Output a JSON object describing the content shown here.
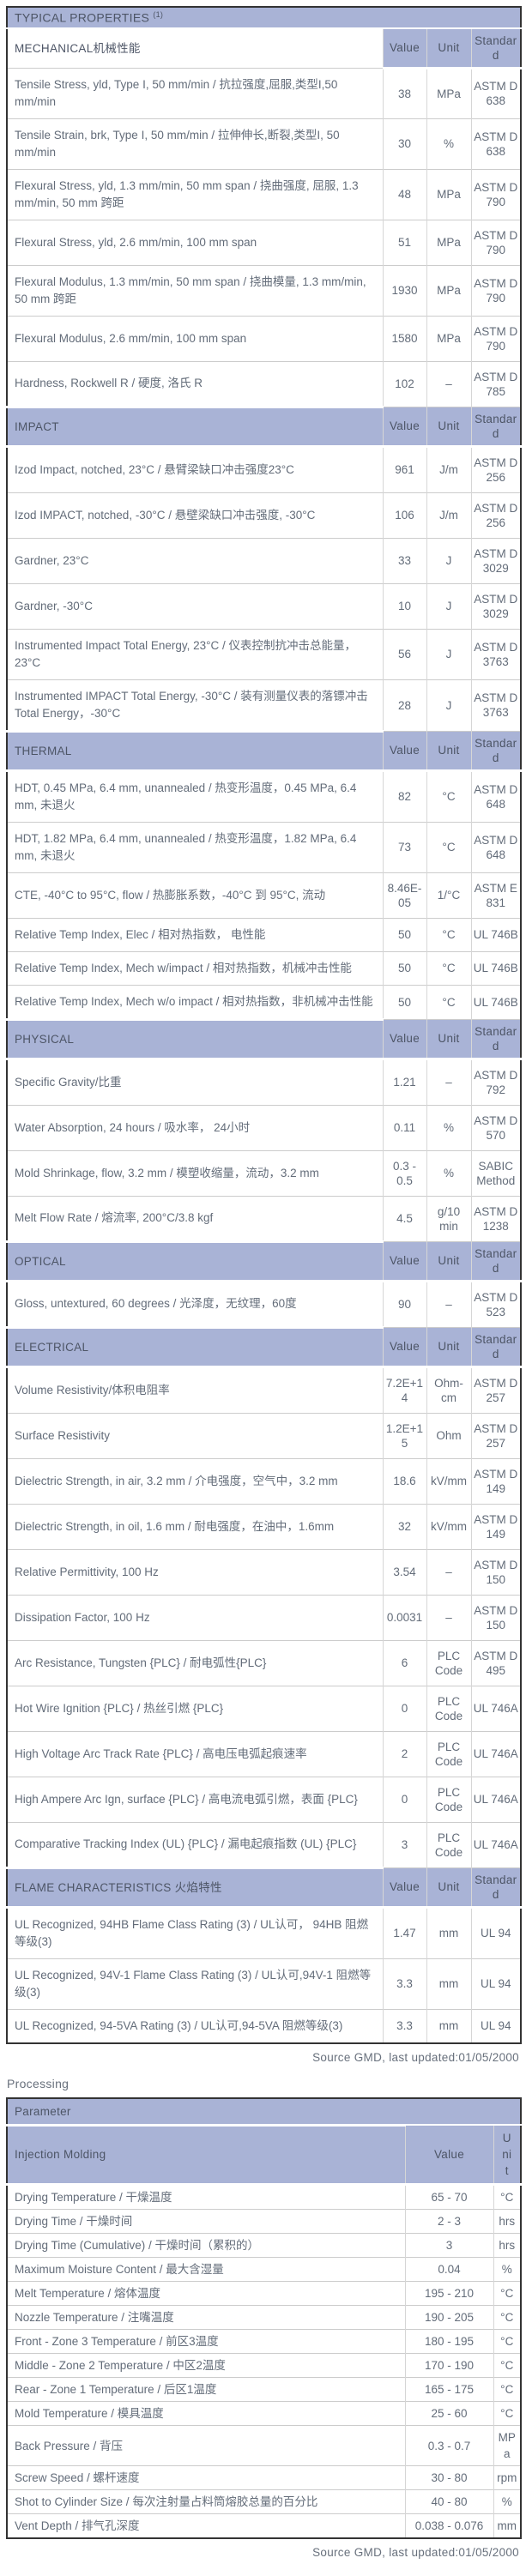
{
  "colors": {
    "header_bg": "#a9b3d6",
    "header_text": "#4d5566",
    "body_text": "#636c79",
    "outer_border": "#333333",
    "grid_line": "#cccccc"
  },
  "typical_properties": {
    "title": "TYPICAL PROPERTIES",
    "title_superscript": "(1)",
    "columns": [
      "Value",
      "Unit",
      "Standard"
    ],
    "sections": [
      {
        "name": "MECHANICAL机械性能",
        "rows": [
          {
            "property": "Tensile Stress, yld, Type I, 50 mm/min / 抗拉强度,屈服,类型I,50 mm/min",
            "value": "38",
            "unit": "MPa",
            "standard": "ASTM D 638"
          },
          {
            "property": "Tensile Strain, brk, Type I, 50 mm/min / 拉伸伸长,断裂,类型I, 50 mm/min",
            "value": "30",
            "unit": "%",
            "standard": "ASTM D 638"
          },
          {
            "property": "Flexural Stress, yld, 1.3 mm/min, 50 mm span / 挠曲强度, 屈服, 1.3 mm/min, 50 mm 跨距",
            "value": "48",
            "unit": "MPa",
            "standard": "ASTM D 790"
          },
          {
            "property": "Flexural Stress, yld, 2.6 mm/min, 100 mm span",
            "value": "51",
            "unit": "MPa",
            "standard": "ASTM D 790"
          },
          {
            "property": "Flexural Modulus, 1.3 mm/min, 50 mm span / 挠曲模量, 1.3 mm/min, 50 mm 跨距",
            "value": "1930",
            "unit": "MPa",
            "standard": "ASTM D 790"
          },
          {
            "property": "Flexural Modulus, 2.6 mm/min, 100 mm span",
            "value": "1580",
            "unit": "MPa",
            "standard": "ASTM D 790"
          },
          {
            "property": "Hardness, Rockwell R / 硬度, 洛氏 R",
            "value": "102",
            "unit": "–",
            "standard": "ASTM D 785"
          }
        ]
      },
      {
        "name": "IMPACT",
        "rows": [
          {
            "property": "Izod Impact, notched, 23°C / 悬臂梁缺口冲击强度23°C",
            "value": "961",
            "unit": "J/m",
            "standard": "ASTM D 256"
          },
          {
            "property": "Izod IMPACT, notched, -30°C / 悬壁梁缺口冲击强度, -30°C",
            "value": "106",
            "unit": "J/m",
            "standard": "ASTM D 256"
          },
          {
            "property": "Gardner, 23°C",
            "value": "33",
            "unit": "J",
            "standard": "ASTM D 3029"
          },
          {
            "property": "Gardner, -30°C",
            "value": "10",
            "unit": "J",
            "standard": "ASTM D 3029"
          },
          {
            "property": "Instrumented Impact Total Energy, 23°C / 仪表控制抗冲击总能量，23°C",
            "value": "56",
            "unit": "J",
            "standard": "ASTM D 3763"
          },
          {
            "property": "Instrumented IMPACT Total Energy, -30°C / 装有测量仪表的落镖冲击Total Energy，-30°C",
            "value": "28",
            "unit": "J",
            "standard": "ASTM D 3763"
          }
        ]
      },
      {
        "name": "THERMAL",
        "rows": [
          {
            "property": "HDT, 0.45 MPa, 6.4 mm, unannealed / 热变形温度，0.45 MPa, 6.4 mm, 未退火",
            "value": "82",
            "unit": "°C",
            "standard": "ASTM D 648"
          },
          {
            "property": "HDT, 1.82 MPa, 6.4 mm, unannealed / 热变形温度，1.82 MPa, 6.4 mm, 未退火",
            "value": "73",
            "unit": "°C",
            "standard": "ASTM D 648"
          },
          {
            "property": "CTE, -40°C to 95°C, flow / 热膨胀系数，-40°C 到 95°C, 流动",
            "value": "8.46E-05",
            "unit": "1/°C",
            "standard": "ASTM E 831"
          },
          {
            "property": "Relative Temp Index, Elec / 相对热指数， 电性能",
            "value": "50",
            "unit": "°C",
            "standard": "UL 746B"
          },
          {
            "property": "Relative Temp Index, Mech w/impact / 相对热指数，机械冲击性能",
            "value": "50",
            "unit": "°C",
            "standard": "UL 746B"
          },
          {
            "property": "Relative Temp Index, Mech w/o impact / 相对热指数，非机械冲击性能",
            "value": "50",
            "unit": "°C",
            "standard": "UL 746B"
          }
        ]
      },
      {
        "name": "PHYSICAL",
        "rows": [
          {
            "property": "Specific Gravity/比重",
            "value": "1.21",
            "unit": "–",
            "standard": "ASTM D 792"
          },
          {
            "property": "Water Absorption, 24 hours / 吸水率， 24小时",
            "value": "0.11",
            "unit": "%",
            "standard": "ASTM D 570"
          },
          {
            "property": "Mold Shrinkage, flow, 3.2 mm / 模塑收缩量，流动，3.2 mm",
            "value": "0.3 - 0.5",
            "unit": "%",
            "standard": "SABIC Method"
          },
          {
            "property": "Melt Flow Rate / 熔流率, 200°C/3.8 kgf",
            "value": "4.5",
            "unit": "g/10 min",
            "standard": "ASTM D 1238"
          }
        ]
      },
      {
        "name": "OPTICAL",
        "rows": [
          {
            "property": "Gloss, untextured, 60 degrees / 光泽度，无纹理，60度",
            "value": "90",
            "unit": "–",
            "standard": "ASTM D 523"
          }
        ]
      },
      {
        "name": "ELECTRICAL",
        "rows": [
          {
            "property": "Volume Resistivity/体积电阻率",
            "value": "7.2E+14",
            "unit": "Ohm-cm",
            "standard": "ASTM D 257"
          },
          {
            "property": "Surface Resistivity",
            "value": "1.2E+15",
            "unit": "Ohm",
            "standard": "ASTM D 257"
          },
          {
            "property": "Dielectric Strength, in air, 3.2 mm / 介电强度，空气中，3.2 mm",
            "value": "18.6",
            "unit": "kV/mm",
            "standard": "ASTM D 149"
          },
          {
            "property": "Dielectric Strength, in oil, 1.6 mm / 耐电强度，在油中，1.6mm",
            "value": "32",
            "unit": "kV/mm",
            "standard": "ASTM D 149"
          },
          {
            "property": "Relative Permittivity, 100 Hz",
            "value": "3.54",
            "unit": "–",
            "standard": "ASTM D 150"
          },
          {
            "property": "Dissipation Factor, 100 Hz",
            "value": "0.0031",
            "unit": "–",
            "standard": "ASTM D 150"
          },
          {
            "property": "Arc Resistance, Tungsten {PLC} / 耐电弧性{PLC}",
            "value": "6",
            "unit": "PLC Code",
            "standard": "ASTM D 495"
          },
          {
            "property": "Hot Wire Ignition {PLC} / 热丝引燃 {PLC}",
            "value": "0",
            "unit": "PLC Code",
            "standard": "UL 746A"
          },
          {
            "property": "High Voltage Arc Track Rate {PLC} / 高电压电弧起痕速率",
            "value": "2",
            "unit": "PLC Code",
            "standard": "UL 746A"
          },
          {
            "property": "High Ampere Arc Ign, surface {PLC} / 高电流电弧引燃，表面 {PLC}",
            "value": "0",
            "unit": "PLC Code",
            "standard": "UL 746A"
          },
          {
            "property": "Comparative Tracking Index (UL) {PLC} / 漏电起痕指数 (UL) {PLC}",
            "value": "3",
            "unit": "PLC Code",
            "standard": "UL 746A"
          }
        ]
      },
      {
        "name": "FLAME CHARACTERISTICS 火焰特性",
        "rows": [
          {
            "property": "UL Recognized, 94HB Flame Class Rating (3) / UL认可， 94HB 阻燃等级(3)",
            "value": "1.47",
            "unit": "mm",
            "standard": "UL 94"
          },
          {
            "property": "UL Recognized, 94V-1 Flame Class Rating (3) / UL认可,94V-1 阻燃等级(3)",
            "value": "3.3",
            "unit": "mm",
            "standard": "UL 94"
          },
          {
            "property": "UL Recognized, 94-5VA Rating (3) / UL认可,94-5VA 阻燃等级(3)",
            "value": "3.3",
            "unit": "mm",
            "standard": "UL 94"
          }
        ]
      }
    ],
    "source": "Source GMD, last updated:01/05/2000"
  },
  "processing": {
    "title": "Processing",
    "table_header": "Parameter",
    "subheader": {
      "label": "Injection Molding",
      "columns": [
        "Value",
        "Unit"
      ]
    },
    "rows": [
      {
        "parameter": "Drying Temperature / 干燥温度",
        "value": "65 - 70",
        "unit": "°C"
      },
      {
        "parameter": "Drying Time / 干燥时间",
        "value": "2 - 3",
        "unit": "hrs"
      },
      {
        "parameter": "Drying Time (Cumulative) / 干燥时间（累积的）",
        "value": "3",
        "unit": "hrs"
      },
      {
        "parameter": "Maximum Moisture Content / 最大含湿量",
        "value": "0.04",
        "unit": "%"
      },
      {
        "parameter": "Melt Temperature / 熔体温度",
        "value": "195 - 210",
        "unit": "°C"
      },
      {
        "parameter": "Nozzle Temperature / 注嘴温度",
        "value": "190 - 205",
        "unit": "°C"
      },
      {
        "parameter": "Front - Zone 3 Temperature / 前区3温度",
        "value": "180 - 195",
        "unit": "°C"
      },
      {
        "parameter": "Middle - Zone 2 Temperature / 中区2温度",
        "value": "170 - 190",
        "unit": "°C"
      },
      {
        "parameter": "Rear - Zone 1 Temperature / 后区1温度",
        "value": "165 - 175",
        "unit": "°C"
      },
      {
        "parameter": "Mold Temperature / 模具温度",
        "value": "25 - 60",
        "unit": "°C"
      },
      {
        "parameter": "Back Pressure / 背压",
        "value": "0.3 - 0.7",
        "unit": "MPa"
      },
      {
        "parameter": "Screw Speed / 螺杆速度",
        "value": "30 - 80",
        "unit": "rpm"
      },
      {
        "parameter": "Shot to Cylinder Size / 每次注射量占料筒熔胶总量的百分比",
        "value": "40 - 80",
        "unit": "%"
      },
      {
        "parameter": "Vent Depth / 排气孔深度",
        "value": "0.038 - 0.076",
        "unit": "mm"
      }
    ],
    "source": "Source GMD, last updated:01/05/2000"
  }
}
